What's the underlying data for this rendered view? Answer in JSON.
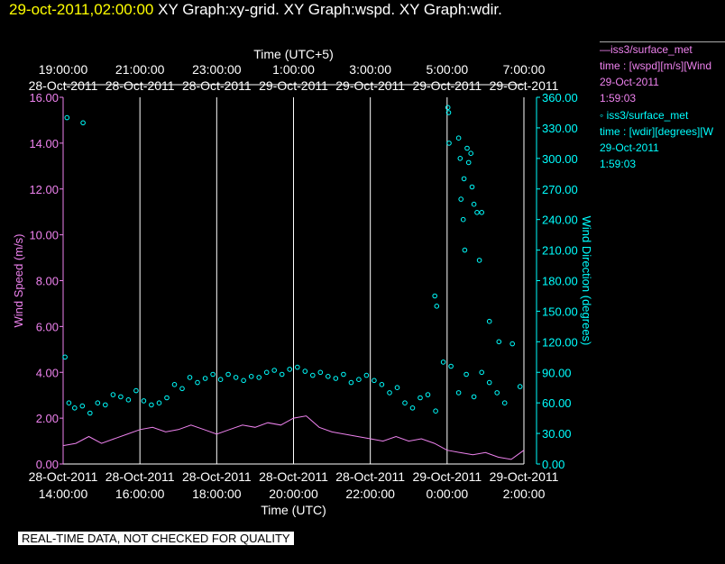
{
  "header": {
    "timestamp": "29-oct-2011,02:00:00",
    "graphs": "XY Graph:xy-grid.  XY Graph:wspd.  XY Graph:wdir."
  },
  "legend": {
    "wspd": {
      "line1": "—iss3/surface_met",
      "line2": "time : [wspd][m/s][Wind",
      "line3": "29-Oct-2011",
      "line4": "1:59:03"
    },
    "wdir": {
      "line1": "◦  iss3/surface_met",
      "line2": "time : [wdir][degrees][W",
      "line3": "29-Oct-2011",
      "line4": "1:59:03"
    }
  },
  "banner": "REAL-TIME DATA, NOT CHECKED FOR QUALITY",
  "colors": {
    "wspd": "#ee82ee",
    "wdir": "#00ffff",
    "grid": "#ffffff",
    "timestamp": "#ffff00"
  },
  "chart_data": {
    "type": "line",
    "top_axis": {
      "label": "Time (UTC+5)",
      "ticks": [
        {
          "time": "19:00:00",
          "date": "28-Oct-2011",
          "x": 14
        },
        {
          "time": "21:00:00",
          "date": "28-Oct-2011",
          "x": 16
        },
        {
          "time": "23:00:00",
          "date": "28-Oct-2011",
          "x": 18
        },
        {
          "time": "1:00:00",
          "date": "29-Oct-2011",
          "x": 20
        },
        {
          "time": "3:00:00",
          "date": "29-Oct-2011",
          "x": 22
        },
        {
          "time": "5:00:00",
          "date": "29-Oct-2011",
          "x": 24
        },
        {
          "time": "7:00:00",
          "date": "29-Oct-2011",
          "x": 26
        }
      ]
    },
    "bottom_axis": {
      "label": "Time (UTC)",
      "ticks": [
        {
          "date": "28-Oct-2011",
          "time": "14:00:00",
          "x": 14
        },
        {
          "date": "28-Oct-2011",
          "time": "16:00:00",
          "x": 16
        },
        {
          "date": "28-Oct-2011",
          "time": "18:00:00",
          "x": 18
        },
        {
          "date": "28-Oct-2011",
          "time": "20:00:00",
          "x": 20
        },
        {
          "date": "28-Oct-2011",
          "time": "22:00:00",
          "x": 22
        },
        {
          "date": "29-Oct-2011",
          "time": "0:00:00",
          "x": 24
        },
        {
          "date": "29-Oct-2011",
          "time": "2:00:00",
          "x": 26
        }
      ],
      "range": [
        14,
        26
      ],
      "grid": true
    },
    "left_axis": {
      "label": "Wind Speed (m/s)",
      "range": [
        0,
        16
      ],
      "ticks": [
        "0.00",
        "2.00",
        "4.00",
        "6.00",
        "8.00",
        "10.00",
        "12.00",
        "14.00",
        "16.00"
      ]
    },
    "right_axis": {
      "label": "Wind Direction (degrees)",
      "range": [
        0,
        360
      ],
      "ticks": [
        "0.00",
        "30.00",
        "60.00",
        "90.00",
        "120.00",
        "150.00",
        "180.00",
        "210.00",
        "240.00",
        "270.00",
        "300.00",
        "330.00",
        "360.00"
      ]
    },
    "series": [
      {
        "key": "wspd",
        "style": "line",
        "axis": "left",
        "x": [
          14.0,
          14.33,
          14.67,
          15.0,
          15.33,
          15.67,
          16.0,
          16.33,
          16.67,
          17.0,
          17.33,
          17.67,
          18.0,
          18.33,
          18.67,
          19.0,
          19.33,
          19.67,
          20.0,
          20.33,
          20.67,
          21.0,
          21.33,
          21.67,
          22.0,
          22.33,
          22.67,
          23.0,
          23.33,
          23.67,
          24.0,
          24.33,
          24.67,
          25.0,
          25.33,
          25.67,
          26.0
        ],
        "y": [
          0.8,
          0.9,
          1.2,
          0.9,
          1.1,
          1.3,
          1.5,
          1.6,
          1.4,
          1.5,
          1.7,
          1.5,
          1.3,
          1.5,
          1.7,
          1.6,
          1.8,
          1.7,
          2.0,
          2.1,
          1.6,
          1.4,
          1.3,
          1.2,
          1.1,
          1.0,
          1.2,
          1.0,
          1.1,
          0.9,
          0.6,
          0.5,
          0.4,
          0.5,
          0.3,
          0.2,
          0.6
        ]
      },
      {
        "key": "wdir",
        "style": "scatter",
        "axis": "right",
        "x": [
          14.05,
          14.15,
          14.3,
          14.5,
          14.7,
          14.9,
          15.1,
          15.3,
          15.5,
          15.7,
          15.9,
          16.1,
          16.3,
          16.5,
          16.7,
          16.9,
          17.1,
          17.3,
          17.5,
          17.7,
          17.9,
          18.1,
          18.3,
          18.5,
          18.7,
          18.9,
          19.1,
          19.3,
          19.5,
          19.7,
          19.9,
          20.1,
          20.3,
          20.5,
          20.7,
          20.9,
          21.1,
          21.3,
          21.5,
          21.7,
          21.9,
          22.1,
          22.3,
          22.5,
          22.7,
          22.9,
          23.1,
          23.3,
          23.5,
          23.7,
          23.9,
          24.1,
          24.3,
          24.5,
          24.7,
          24.9,
          25.1,
          25.3,
          25.5,
          25.7,
          25.9
        ],
        "y": [
          105,
          60,
          55,
          57,
          50,
          60,
          58,
          68,
          66,
          63,
          72,
          62,
          58,
          60,
          65,
          78,
          74,
          85,
          80,
          84,
          88,
          83,
          88,
          85,
          82,
          86,
          85,
          90,
          92,
          88,
          93,
          95,
          91,
          87,
          90,
          86,
          84,
          88,
          80,
          83,
          87,
          82,
          78,
          70,
          75,
          60,
          55,
          65,
          68,
          52,
          100,
          96,
          70,
          88,
          66,
          90,
          80,
          70,
          60,
          118,
          76
        ]
      },
      {
        "key": "wdir_outliers",
        "style": "scatter",
        "axis": "right",
        "x": [
          14.1,
          14.52,
          23.68,
          23.73,
          24.02,
          24.04,
          24.05,
          24.3,
          24.34,
          24.36,
          24.42,
          24.44,
          24.46,
          24.52,
          24.56,
          24.62,
          24.65,
          24.7,
          24.78,
          24.84,
          24.9,
          25.1,
          25.35
        ],
        "y": [
          340,
          335,
          165,
          155,
          350,
          345,
          315,
          320,
          300,
          260,
          240,
          280,
          210,
          310,
          296,
          305,
          272,
          255,
          247,
          200,
          247,
          140,
          120
        ]
      }
    ]
  }
}
